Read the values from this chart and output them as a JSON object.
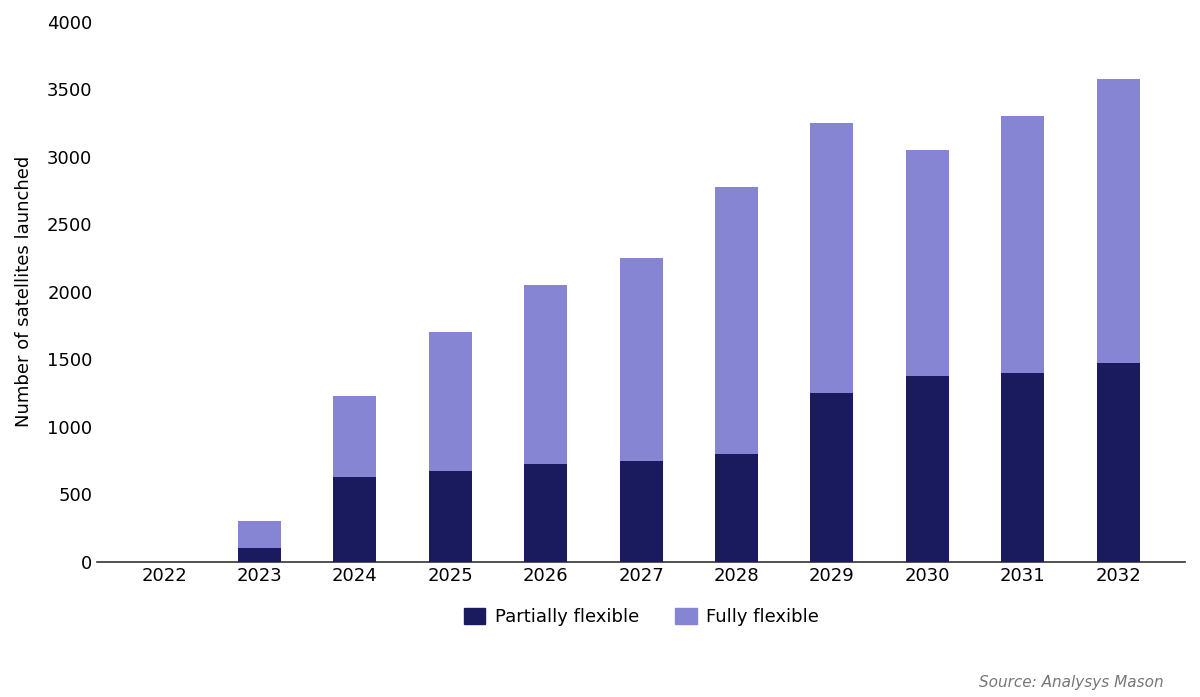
{
  "years": [
    "2022",
    "2023",
    "2024",
    "2025",
    "2026",
    "2027",
    "2028",
    "2029",
    "2030",
    "2031",
    "2032"
  ],
  "partially_flexible": [
    0,
    100,
    625,
    675,
    725,
    750,
    800,
    1250,
    1375,
    1400,
    1475
  ],
  "fully_flexible": [
    0,
    200,
    600,
    1025,
    1325,
    1500,
    1975,
    2000,
    1675,
    1900,
    2100
  ],
  "color_partially": "#1a1a5e",
  "color_fully": "#8585d4",
  "ylabel": "Number of satellites launched",
  "ylim": [
    0,
    4000
  ],
  "yticks": [
    0,
    500,
    1000,
    1500,
    2000,
    2500,
    3000,
    3500,
    4000
  ],
  "legend_partially": "Partially flexible",
  "legend_fully": "Fully flexible",
  "source_text": "Source: Analysys Mason",
  "bar_width": 0.45,
  "background_color": "#ffffff"
}
